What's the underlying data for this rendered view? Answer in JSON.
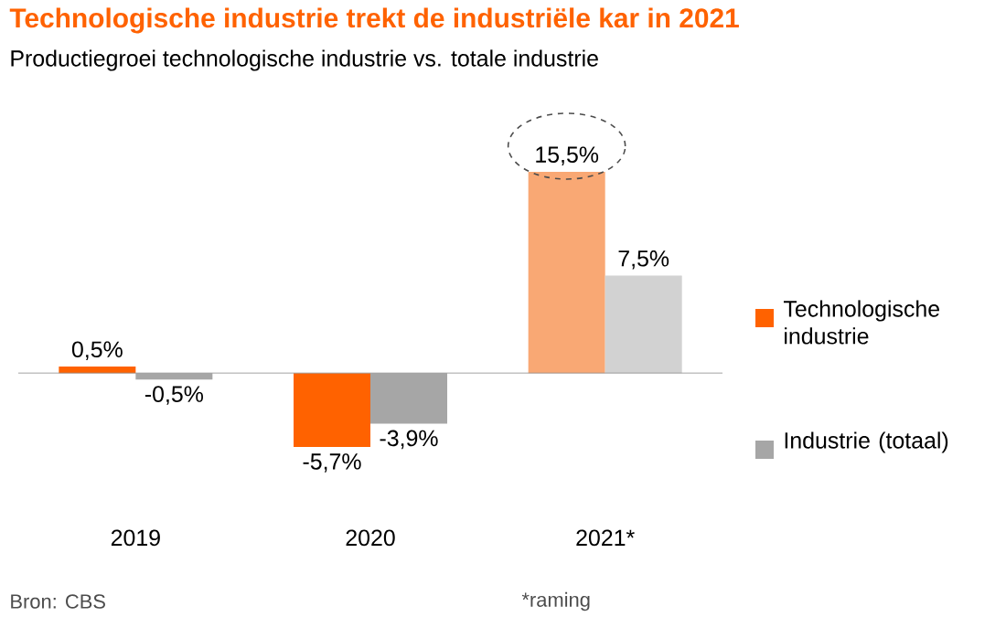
{
  "chart_data": {
    "type": "bar",
    "title": "Technologische industrie trekt de industriële kar in 2021",
    "subtitle": "Productiegroei technologische industrie vs. totale industrie",
    "categories": [
      "2019",
      "2020",
      "2021*"
    ],
    "series": [
      {
        "name": "Technologische industrie",
        "color": "#ff6200",
        "colors": [
          "#ff6200",
          "#ff6200",
          "#f9a874"
        ],
        "values": [
          0.5,
          -5.7,
          15.5
        ],
        "value_labels": [
          "0,5%",
          "-5,7%",
          "15,5%"
        ]
      },
      {
        "name": "Industrie (totaal)",
        "color": "#a6a6a6",
        "colors": [
          "#a6a6a6",
          "#a6a6a6",
          "#d2d2d2"
        ],
        "values": [
          -0.5,
          -3.9,
          7.5
        ],
        "value_labels": [
          "-0,5%",
          "-3,9%",
          "7,5%"
        ]
      }
    ],
    "legend": "right",
    "annotations": [
      "Bron: CBS",
      "*raming"
    ]
  }
}
